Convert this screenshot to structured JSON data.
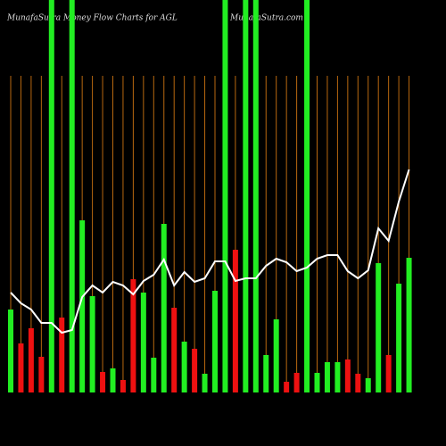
{
  "chart_data": {
    "type": "bar",
    "title": "MunafaSutra  Money Flow  Charts for AGL",
    "watermark": "MunafaSutra.com",
    "categories": [
      null,
      null,
      null,
      null,
      null,
      null,
      null,
      null,
      null,
      null,
      null,
      null,
      null,
      null,
      null,
      null,
      null,
      null,
      null,
      null,
      null,
      null,
      null,
      null,
      null,
      null,
      null,
      null,
      null,
      null,
      null,
      null,
      null,
      null,
      null,
      null,
      null,
      null,
      null,
      null
    ],
    "ylim": [
      0,
      440
    ],
    "grid_color": "#b8680f",
    "series": [
      {
        "type": "bar",
        "values": [
          93,
          55,
          72,
          40,
          440,
          84,
          440,
          193,
          108,
          23,
          27,
          14,
          127,
          112,
          39,
          189,
          95,
          57,
          49,
          21,
          114,
          440,
          160,
          440,
          440,
          42,
          82,
          12,
          22,
          440,
          22,
          34,
          34,
          37,
          21,
          16,
          145,
          42,
          122,
          151
        ],
        "colors": [
          "#22ee22",
          "#ee1111",
          "#ee1111",
          "#ee1111",
          "#22ee22",
          "#ee1111",
          "#22ee22",
          "#22ee22",
          "#22ee22",
          "#ee1111",
          "#22ee22",
          "#ee1111",
          "#ee1111",
          "#22ee22",
          "#22ee22",
          "#22ee22",
          "#ee1111",
          "#22ee22",
          "#ee1111",
          "#22ee22",
          "#22ee22",
          "#22ee22",
          "#ee1111",
          "#22ee22",
          "#22ee22",
          "#22ee22",
          "#22ee22",
          "#ee1111",
          "#ee1111",
          "#22ee22",
          "#22ee22",
          "#22ee22",
          "#22ee22",
          "#ee1111",
          "#ee1111",
          "#22ee22",
          "#22ee22",
          "#ee1111",
          "#22ee22",
          "#22ee22"
        ]
      },
      {
        "type": "line",
        "color": "#ffffff",
        "values": [
          112,
          100,
          93,
          78,
          78,
          67,
          70,
          107,
          120,
          112,
          124,
          120,
          110,
          125,
          132,
          149,
          120,
          135,
          124,
          128,
          147,
          147,
          125,
          128,
          128,
          142,
          150,
          146,
          136,
          140,
          150,
          154,
          154,
          136,
          128,
          137,
          184,
          170,
          214,
          250
        ]
      }
    ]
  }
}
